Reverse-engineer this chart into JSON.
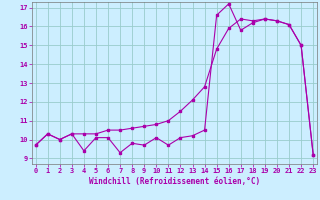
{
  "xlabel": "Windchill (Refroidissement éolien,°C)",
  "x": [
    0,
    1,
    2,
    3,
    4,
    5,
    6,
    7,
    8,
    9,
    10,
    11,
    12,
    13,
    14,
    15,
    16,
    17,
    18,
    19,
    20,
    21,
    22,
    23
  ],
  "line1": [
    9.7,
    10.3,
    10.0,
    10.3,
    9.4,
    10.1,
    10.1,
    9.3,
    9.8,
    9.7,
    10.1,
    9.7,
    10.1,
    10.2,
    10.5,
    16.6,
    17.2,
    15.8,
    16.2,
    16.4,
    16.3,
    16.1,
    15.0,
    9.2
  ],
  "line2": [
    9.7,
    10.3,
    10.0,
    10.3,
    10.3,
    10.3,
    10.5,
    10.5,
    10.6,
    10.7,
    10.8,
    11.0,
    11.5,
    12.1,
    12.8,
    14.8,
    15.9,
    16.4,
    16.3,
    16.4,
    16.3,
    16.1,
    15.0,
    9.2
  ],
  "bg_color": "#cceeff",
  "grid_color": "#99cccc",
  "line_color": "#aa00aa",
  "ylim_min": 9,
  "ylim_max": 17,
  "xlim_min": 0,
  "xlim_max": 23,
  "yticks": [
    9,
    10,
    11,
    12,
    13,
    14,
    15,
    16,
    17
  ],
  "xticks": [
    0,
    1,
    2,
    3,
    4,
    5,
    6,
    7,
    8,
    9,
    10,
    11,
    12,
    13,
    14,
    15,
    16,
    17,
    18,
    19,
    20,
    21,
    22,
    23
  ]
}
